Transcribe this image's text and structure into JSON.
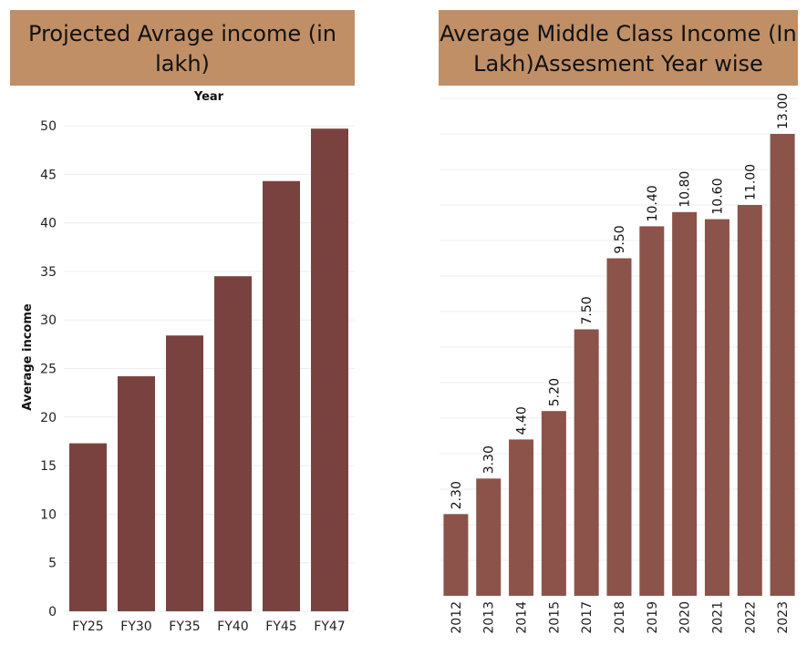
{
  "chart_data": [
    {
      "type": "bar",
      "title": "Projected Avrage income (in lakh)",
      "xlabel": "Year",
      "ylabel": "Average income",
      "categories": [
        "FY25",
        "FY30",
        "FY35",
        "FY40",
        "FY45",
        "FY47"
      ],
      "values": [
        17.3,
        24.2,
        28.4,
        34.5,
        44.3,
        49.7
      ],
      "yticks": [
        "0",
        "5",
        "10",
        "15",
        "20",
        "25",
        "30",
        "35",
        "40",
        "45",
        "50"
      ],
      "ylim": [
        0,
        50
      ],
      "grid": true,
      "colors": {
        "bar": "#7a423e",
        "grid": "#ececec"
      }
    },
    {
      "type": "bar",
      "title": "Average Middle Class Income (In Lakh)Assesment Year wise",
      "xlabel": "",
      "ylabel": "",
      "categories": [
        "2012",
        "2013",
        "2014",
        "2015",
        "2017",
        "2018",
        "2019",
        "2020",
        "2021",
        "2022",
        "2023"
      ],
      "values": [
        2.3,
        3.3,
        4.4,
        5.2,
        7.5,
        9.5,
        10.4,
        10.8,
        10.6,
        11.0,
        13.0
      ],
      "data_labels": [
        "2.30",
        "3.30",
        "4.40",
        "5.20",
        "7.50",
        "9.50",
        "10.40",
        "10.80",
        "10.60",
        "11.00",
        "13.00"
      ],
      "ylim": [
        0,
        14
      ],
      "grid": true,
      "colors": {
        "bar": "#8b534a",
        "grid": "#ececec"
      }
    }
  ]
}
